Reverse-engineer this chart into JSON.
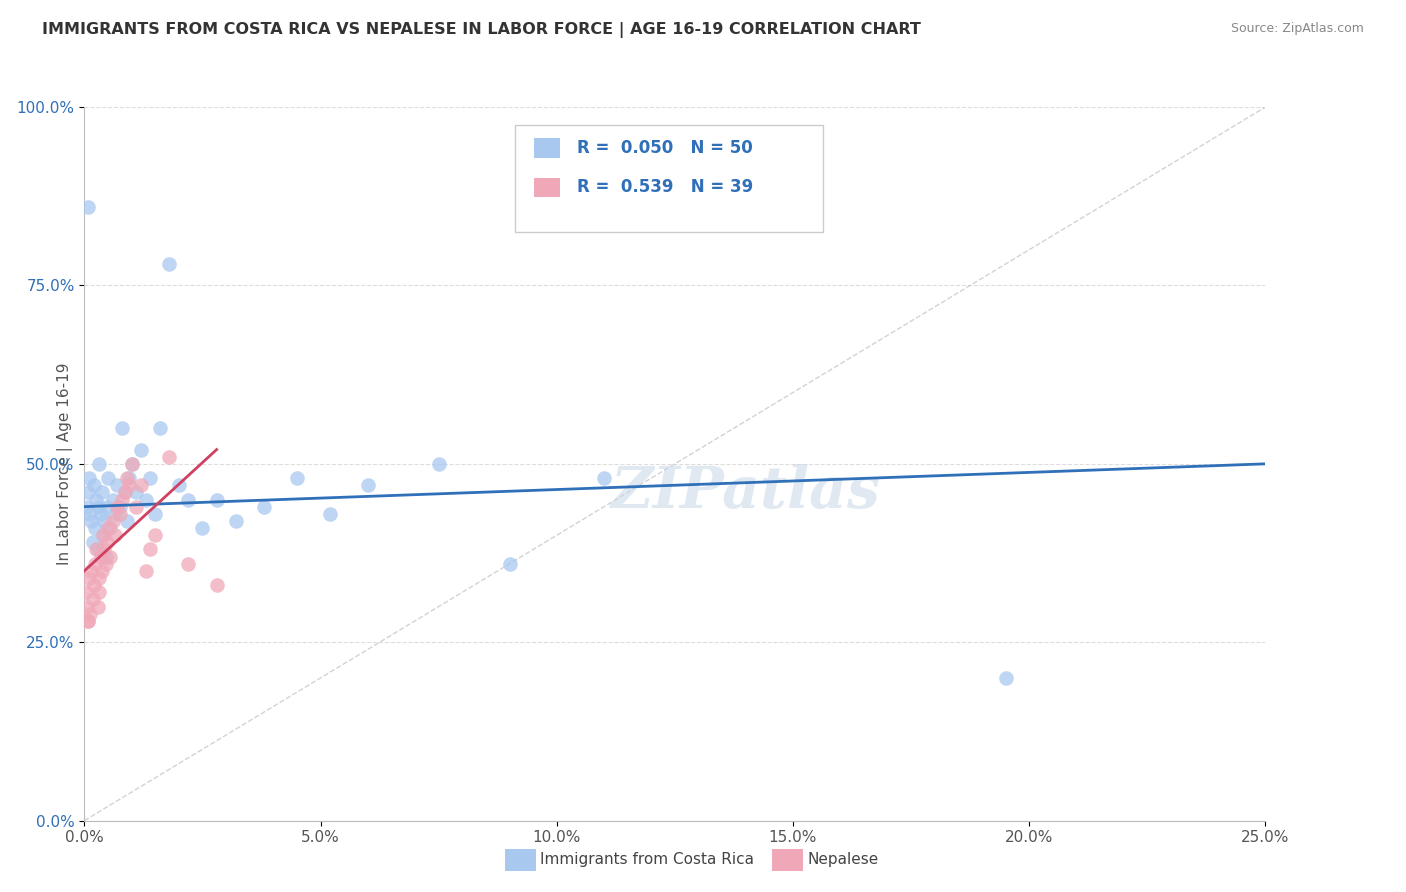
{
  "title": "IMMIGRANTS FROM COSTA RICA VS NEPALESE IN LABOR FORCE | AGE 16-19 CORRELATION CHART",
  "source": "Source: ZipAtlas.com",
  "ylabel": "In Labor Force | Age 16-19",
  "x_tick_labels": [
    "0.0%",
    "5.0%",
    "10.0%",
    "15.0%",
    "20.0%",
    "25.0%"
  ],
  "y_tick_labels": [
    "100.0%",
    "75.0%",
    "50.0%",
    "25.0%",
    "0.0%"
  ],
  "xlim": [
    0.0,
    25.0
  ],
  "ylim": [
    0.0,
    100.0
  ],
  "legend_labels": [
    "Immigrants from Costa Rica",
    "Nepalese"
  ],
  "r_cr": 0.05,
  "n_cr": 50,
  "r_np": 0.539,
  "n_np": 39,
  "blue_color": "#a8c8f0",
  "pink_color": "#f0a8b8",
  "blue_line_color": "#3070b8",
  "pink_line_color": "#d04060",
  "ref_line_color": "#c8c8c8",
  "legend_r_color": "#3070b8",
  "watermark": "ZIPatlas",
  "cr_x": [
    0.05,
    0.08,
    0.1,
    0.12,
    0.15,
    0.18,
    0.2,
    0.22,
    0.25,
    0.28,
    0.3,
    0.32,
    0.35,
    0.38,
    0.4,
    0.42,
    0.45,
    0.48,
    0.5,
    0.55,
    0.6,
    0.65,
    0.7,
    0.75,
    0.8,
    0.85,
    0.9,
    0.95,
    1.0,
    1.1,
    1.2,
    1.3,
    1.4,
    1.5,
    1.6,
    1.8,
    2.0,
    2.2,
    2.5,
    2.8,
    3.2,
    3.8,
    4.5,
    5.2,
    6.0,
    7.5,
    9.0,
    11.0,
    19.5,
    0.07
  ],
  "cr_y": [
    44,
    46,
    48,
    43,
    42,
    39,
    47,
    41,
    45,
    38,
    50,
    44,
    43,
    46,
    40,
    42,
    37,
    44,
    48,
    41,
    45,
    43,
    47,
    44,
    55,
    46,
    42,
    48,
    50,
    46,
    52,
    45,
    48,
    43,
    55,
    78,
    47,
    45,
    41,
    45,
    42,
    44,
    48,
    43,
    47,
    50,
    36,
    48,
    20,
    86
  ],
  "np_x": [
    0.04,
    0.06,
    0.08,
    0.1,
    0.12,
    0.15,
    0.18,
    0.2,
    0.22,
    0.25,
    0.28,
    0.3,
    0.32,
    0.35,
    0.38,
    0.4,
    0.42,
    0.45,
    0.48,
    0.5,
    0.55,
    0.6,
    0.65,
    0.7,
    0.75,
    0.8,
    0.85,
    0.9,
    0.95,
    1.0,
    1.1,
    1.2,
    1.3,
    1.4,
    1.5,
    1.8,
    2.2,
    2.8,
    0.07
  ],
  "np_y": [
    32,
    30,
    28,
    34,
    29,
    35,
    31,
    33,
    36,
    38,
    30,
    34,
    32,
    37,
    35,
    40,
    38,
    36,
    39,
    41,
    37,
    42,
    40,
    44,
    43,
    45,
    46,
    48,
    47,
    50,
    44,
    47,
    35,
    38,
    40,
    51,
    36,
    33,
    28
  ]
}
